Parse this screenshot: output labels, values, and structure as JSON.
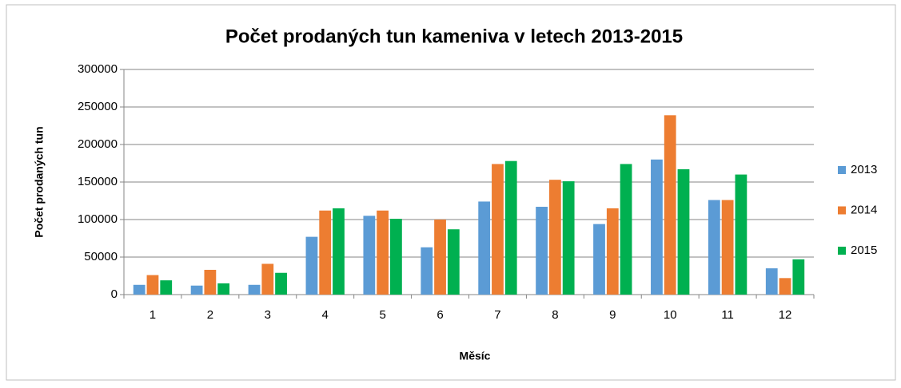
{
  "chart_data": {
    "type": "bar",
    "title": "Počet prodaných tun kameniva v letech 2013-2015",
    "xlabel": "Měsíc",
    "ylabel": "Počet prodaných tun",
    "categories": [
      "1",
      "2",
      "3",
      "4",
      "5",
      "6",
      "7",
      "8",
      "9",
      "10",
      "11",
      "12"
    ],
    "series": [
      {
        "name": "2013",
        "color": "#5b9bd5",
        "values": [
          13000,
          12000,
          13000,
          77000,
          105000,
          63000,
          124000,
          117000,
          94000,
          180000,
          126000,
          35000
        ]
      },
      {
        "name": "2014",
        "color": "#ed7d31",
        "values": [
          26000,
          33000,
          41000,
          112000,
          112000,
          100000,
          174000,
          153000,
          115000,
          239000,
          126000,
          22000
        ]
      },
      {
        "name": "2015",
        "color": "#00b050",
        "values": [
          19000,
          15000,
          29000,
          115000,
          101000,
          87000,
          178000,
          151000,
          174000,
          167000,
          160000,
          47000
        ]
      }
    ],
    "ylim": [
      0,
      300000
    ],
    "yticks": [
      0,
      50000,
      100000,
      150000,
      200000,
      250000,
      300000
    ],
    "grid": true,
    "legend": "right"
  }
}
